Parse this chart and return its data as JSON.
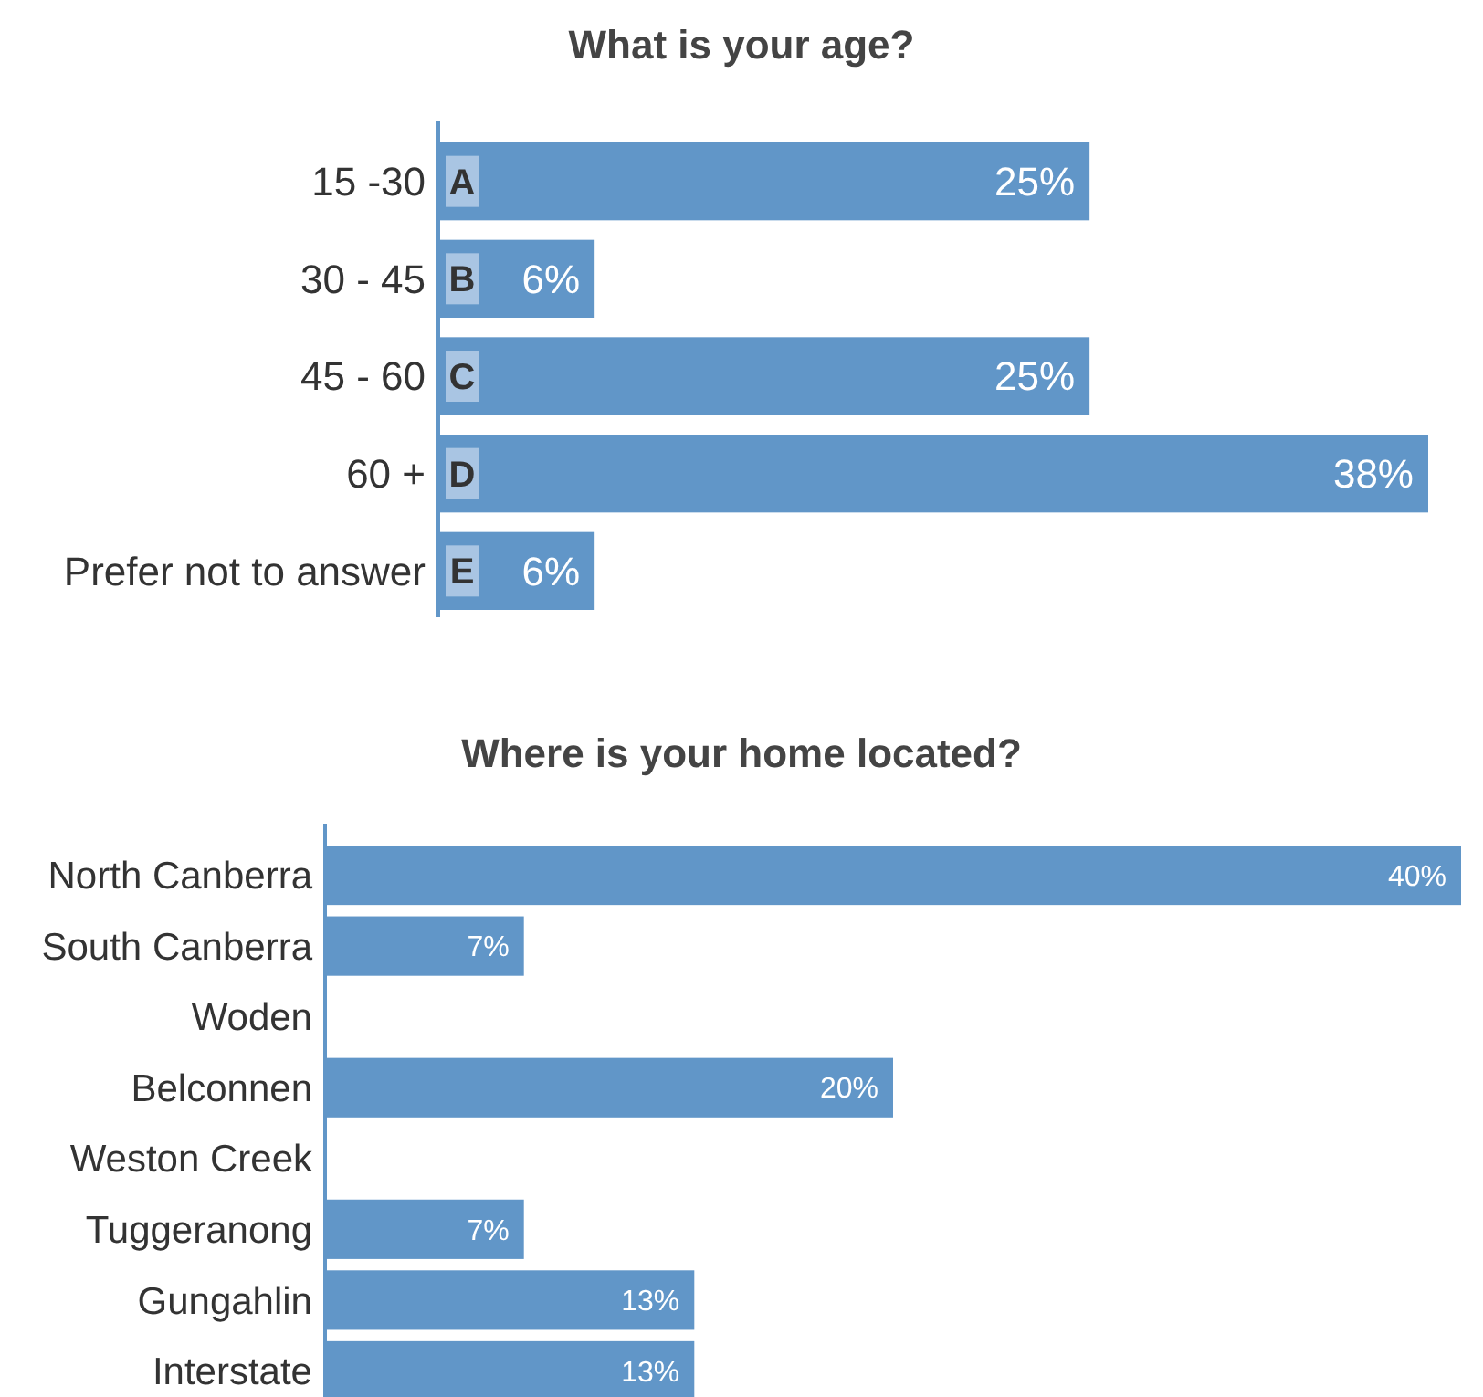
{
  "chart_data": [
    {
      "type": "bar",
      "orientation": "horizontal",
      "title": "What is your age?",
      "categories": [
        "15 -30",
        "30 - 45",
        "45 - 60",
        "60 +",
        "Prefer not to answer"
      ],
      "values": [
        25,
        6,
        25,
        38,
        6
      ],
      "value_labels": [
        "25%",
        "6%",
        "25%",
        "38%",
        "6%"
      ],
      "color": "#6196c8",
      "tick_labels": "y",
      "annotations": [
        "A",
        "B",
        "C",
        "D",
        "E"
      ]
    },
    {
      "type": "bar",
      "orientation": "horizontal",
      "title": "Where is your home located?",
      "categories": [
        "North Canberra",
        "South Canberra",
        "Woden",
        "Belconnen",
        "Weston Creek",
        "Tuggeranong",
        "Gungahlin",
        "Interstate"
      ],
      "values": [
        40,
        7,
        0,
        20,
        0,
        7,
        13,
        13
      ],
      "value_labels": [
        "40%",
        "7%",
        null,
        "20%",
        null,
        "7%",
        "13%",
        "13%"
      ],
      "color": "#6196c8",
      "tick_labels": "y"
    }
  ]
}
